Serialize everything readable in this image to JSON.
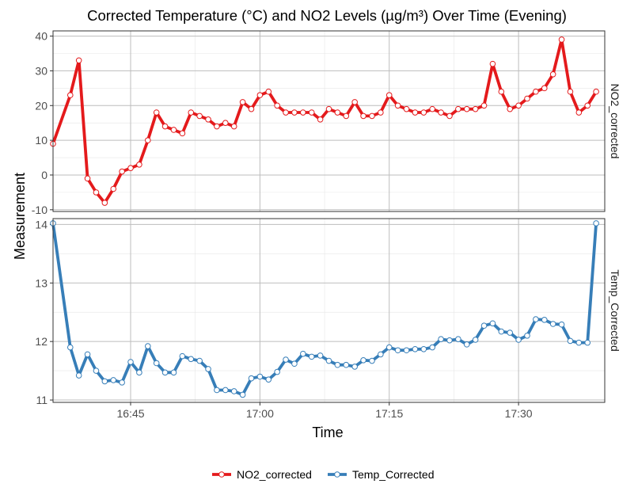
{
  "chart_data": {
    "type": "line",
    "title": "Corrected Temperature (°C) and NO2 Levels (µg/m³) Over Time (Evening)",
    "xlabel": "Time",
    "ylabel": "Measurement",
    "x_ticks": [
      "16:45",
      "17:00",
      "17:15",
      "17:30"
    ],
    "x_range": [
      "16:36",
      "17:40"
    ],
    "grid": true,
    "legend_position": "bottom",
    "panels": [
      {
        "name": "NO2_corrected",
        "color": "#E41A1C",
        "ylim": [
          -10.5,
          41.5
        ],
        "y_ticks": [
          -10,
          0,
          10,
          20,
          30,
          40
        ],
        "x": [
          "16:36",
          "16:38",
          "16:39",
          "16:40",
          "16:41",
          "16:42",
          "16:43",
          "16:44",
          "16:45",
          "16:46",
          "16:47",
          "16:48",
          "16:49",
          "16:50",
          "16:51",
          "16:52",
          "16:53",
          "16:54",
          "16:55",
          "16:56",
          "16:57",
          "16:58",
          "16:59",
          "17:00",
          "17:01",
          "17:02",
          "17:03",
          "17:04",
          "17:05",
          "17:06",
          "17:07",
          "17:08",
          "17:09",
          "17:10",
          "17:11",
          "17:12",
          "17:13",
          "17:14",
          "17:15",
          "17:16",
          "17:17",
          "17:18",
          "17:19",
          "17:20",
          "17:21",
          "17:22",
          "17:23",
          "17:24",
          "17:25",
          "17:26",
          "17:27",
          "17:28",
          "17:29",
          "17:30",
          "17:31",
          "17:32",
          "17:33",
          "17:34",
          "17:35",
          "17:36",
          "17:37",
          "17:38",
          "17:39"
        ],
        "values": [
          9,
          23,
          33,
          -1,
          -5,
          -8,
          -4,
          1,
          2,
          3,
          10,
          18,
          14,
          13,
          12,
          18,
          17,
          16,
          14,
          15,
          14,
          21,
          19,
          23,
          24,
          20,
          18,
          18,
          18,
          18,
          16,
          19,
          18,
          17,
          21,
          17,
          17,
          18,
          23,
          20,
          19,
          18,
          18,
          19,
          18,
          17,
          19,
          19,
          19,
          20,
          32,
          24,
          19,
          20,
          22,
          24,
          25,
          29,
          39,
          24,
          18,
          20,
          24
        ]
      },
      {
        "name": "Temp_Corrected",
        "color": "#377EB8",
        "ylim": [
          10.96,
          14.1
        ],
        "y_ticks": [
          11,
          12,
          13,
          14
        ],
        "x": [
          "16:36",
          "16:38",
          "16:39",
          "16:40",
          "16:41",
          "16:42",
          "16:43",
          "16:44",
          "16:45",
          "16:46",
          "16:47",
          "16:48",
          "16:49",
          "16:50",
          "16:51",
          "16:52",
          "16:53",
          "16:54",
          "16:55",
          "16:56",
          "16:57",
          "16:58",
          "16:59",
          "17:00",
          "17:01",
          "17:02",
          "17:03",
          "17:04",
          "17:05",
          "17:06",
          "17:07",
          "17:08",
          "17:09",
          "17:10",
          "17:11",
          "17:12",
          "17:13",
          "17:14",
          "17:15",
          "17:16",
          "17:17",
          "17:18",
          "17:19",
          "17:20",
          "17:21",
          "17:22",
          "17:23",
          "17:24",
          "17:25",
          "17:26",
          "17:27",
          "17:28",
          "17:29",
          "17:30",
          "17:31",
          "17:32",
          "17:33",
          "17:34",
          "17:35",
          "17:36",
          "17:37",
          "17:38",
          "17:39"
        ],
        "values": [
          14.02,
          11.9,
          11.42,
          11.78,
          11.5,
          11.32,
          11.34,
          11.3,
          11.65,
          11.47,
          11.92,
          11.63,
          11.47,
          11.47,
          11.75,
          11.7,
          11.67,
          11.53,
          11.17,
          11.17,
          11.15,
          11.09,
          11.37,
          11.4,
          11.35,
          11.48,
          11.69,
          11.62,
          11.79,
          11.74,
          11.76,
          11.67,
          11.6,
          11.6,
          11.57,
          11.68,
          11.67,
          11.78,
          11.9,
          11.85,
          11.85,
          11.87,
          11.87,
          11.9,
          12.04,
          12.02,
          12.04,
          11.95,
          12.03,
          12.27,
          12.31,
          12.17,
          12.15,
          12.03,
          12.1,
          12.38,
          12.37,
          12.3,
          12.29,
          12.01,
          11.98,
          11.98,
          14.02
        ]
      }
    ]
  }
}
